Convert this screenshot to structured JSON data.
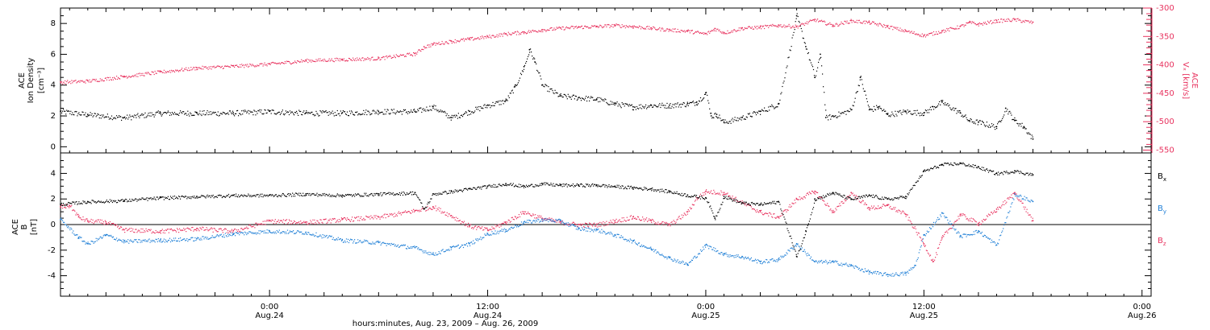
{
  "colors": {
    "black": "#000000",
    "pink": "#e8335f",
    "blue": "#1f7fd6"
  },
  "chart_data": [
    {
      "type": "scatter",
      "panel": "top",
      "left_axis": {
        "label_line1": "ACE",
        "label_line2": "Ion Density",
        "unit": "[cm⁻³]",
        "ylim": [
          -0.4,
          9
        ],
        "ticks": [
          0,
          2,
          4,
          6,
          8
        ]
      },
      "right_axis": {
        "label_line1": "ACE",
        "label_line2": "Vₓ [km/s]",
        "ylim": [
          -555,
          -300
        ],
        "ticks": [
          -300,
          -350,
          -400,
          -450,
          -500,
          -550
        ],
        "color": "#e8335f"
      },
      "series": [
        {
          "name": "Ion Density",
          "axis": "left",
          "color": "#000000",
          "x_hours": [
            -11.5,
            -10,
            -8,
            -6,
            -4,
            -2,
            0,
            2,
            4,
            6,
            8,
            9,
            10,
            11,
            12,
            13,
            13.5,
            14,
            14.3,
            14.6,
            15,
            16,
            17,
            18,
            19,
            20,
            21,
            22,
            23,
            23.5,
            24,
            24.3,
            24.6,
            25,
            26,
            27,
            28,
            29,
            29.5,
            30,
            30.3,
            30.6,
            31,
            32,
            32.5,
            33,
            33.5,
            34,
            35,
            36,
            36.5,
            37,
            38,
            38.5,
            39,
            40,
            40.5,
            41,
            41.5,
            42
          ],
          "y": [
            2.3,
            2.1,
            1.9,
            2.2,
            2.2,
            2.2,
            2.3,
            2.2,
            2.2,
            2.3,
            2.3,
            2.6,
            1.9,
            2.3,
            2.7,
            3.0,
            3.9,
            5.2,
            6.3,
            5.5,
            4.0,
            3.3,
            3.2,
            3.1,
            2.8,
            2.6,
            2.7,
            2.7,
            2.8,
            2.9,
            3.5,
            2.0,
            2.1,
            1.6,
            1.9,
            2.3,
            2.8,
            8.5,
            6.5,
            4.5,
            6.0,
            1.9,
            2.0,
            2.4,
            4.5,
            2.4,
            2.6,
            2.1,
            2.3,
            2.2,
            2.6,
            2.9,
            2.2,
            1.7,
            1.6,
            1.3,
            2.5,
            1.7,
            1.3,
            0.5
          ]
        },
        {
          "name": "Vx",
          "axis": "right",
          "color": "#e8335f",
          "x_hours": [
            -11.5,
            -10,
            -8,
            -6,
            -4,
            -2,
            0,
            2,
            4,
            6,
            8,
            8.5,
            9,
            10,
            11,
            12,
            13,
            14,
            15,
            16,
            17,
            18,
            19,
            20,
            21,
            22,
            23,
            24,
            24.5,
            25,
            26,
            27,
            28,
            29,
            30,
            31,
            32,
            33,
            34,
            35,
            36,
            37,
            38,
            38.5,
            39,
            40,
            41,
            42
          ],
          "y": [
            -430,
            -428,
            -420,
            -412,
            -405,
            -402,
            -398,
            -392,
            -390,
            -388,
            -380,
            -368,
            -363,
            -358,
            -354,
            -350,
            -345,
            -342,
            -338,
            -335,
            -333,
            -332,
            -330,
            -332,
            -335,
            -338,
            -340,
            -345,
            -336,
            -343,
            -335,
            -333,
            -330,
            -332,
            -320,
            -330,
            -322,
            -325,
            -332,
            -340,
            -348,
            -340,
            -332,
            -325,
            -328,
            -322,
            -320,
            -325
          ]
        }
      ]
    },
    {
      "type": "scatter",
      "panel": "bottom",
      "left_axis": {
        "label_line1": "ACE",
        "label_line2": "B",
        "unit": "[nT]",
        "ylim": [
          -5.6,
          5.6
        ],
        "ticks": [
          -4,
          -2,
          0,
          2,
          4
        ]
      },
      "x_axis": {
        "xlim_hours": [
          -11.5,
          48.5
        ],
        "ticks_hours": [
          0,
          12,
          24,
          36,
          48
        ],
        "tick_labels": [
          [
            "0:00",
            "Aug.24"
          ],
          [
            "12:00",
            "Aug.24"
          ],
          [
            "0:00",
            "Aug.25"
          ],
          [
            "12:00",
            "Aug.25"
          ],
          [
            "0:00",
            "Aug.26"
          ]
        ],
        "title": "hours:minutes, Aug. 23, 2009 – Aug. 26, 2009"
      },
      "series": [
        {
          "name": "Bx",
          "label_main": "B",
          "label_sub": "x",
          "color": "#000000",
          "x_hours": [
            -11.5,
            -10,
            -8,
            -6,
            -4,
            -2,
            0,
            2,
            4,
            6,
            8,
            8.5,
            9,
            10,
            11,
            12,
            13,
            14,
            15,
            16,
            17,
            18,
            19,
            20,
            21,
            22,
            23,
            24,
            24.5,
            25,
            26,
            27,
            28,
            29,
            29.5,
            30,
            31,
            32,
            33,
            34,
            35,
            36,
            37,
            38,
            39,
            40,
            41,
            42
          ],
          "y": [
            1.6,
            1.8,
            1.9,
            2.1,
            2.2,
            2.3,
            2.3,
            2.4,
            2.3,
            2.4,
            2.5,
            1.2,
            2.4,
            2.6,
            2.8,
            3.0,
            3.2,
            3.0,
            3.2,
            3.1,
            3.1,
            3.1,
            3.0,
            2.9,
            2.8,
            2.6,
            2.3,
            2.1,
            0.5,
            2.2,
            1.7,
            1.6,
            1.8,
            -2.5,
            -0.5,
            2.0,
            2.5,
            2.0,
            2.3,
            2.0,
            2.2,
            4.2,
            4.7,
            4.8,
            4.5,
            4.0,
            4.2,
            3.9
          ]
        },
        {
          "name": "By",
          "label_main": "B",
          "label_sub": "y",
          "color": "#1f7fd6",
          "x_hours": [
            -11.5,
            -10.5,
            -10,
            -9,
            -8,
            -6,
            -4,
            -2,
            0,
            2,
            4,
            6,
            8,
            9,
            10,
            11,
            12,
            13,
            14,
            15,
            16,
            17,
            18,
            19,
            20,
            21,
            22,
            23,
            24,
            25,
            26,
            27,
            28,
            29,
            30,
            31,
            32,
            33,
            34,
            35,
            35.5,
            36,
            37,
            38,
            39,
            40,
            41,
            42
          ],
          "y": [
            0.4,
            -1.0,
            -1.5,
            -0.8,
            -1.3,
            -1.2,
            -1.1,
            -0.7,
            -0.5,
            -0.6,
            -1.2,
            -1.4,
            -1.8,
            -2.3,
            -1.8,
            -1.5,
            -0.7,
            -0.4,
            0.2,
            0.4,
            0.3,
            -0.3,
            -0.4,
            -0.8,
            -1.3,
            -1.9,
            -2.6,
            -3.1,
            -1.6,
            -2.3,
            -2.5,
            -2.9,
            -2.7,
            -1.5,
            -2.9,
            -2.9,
            -3.2,
            -3.7,
            -3.9,
            -3.8,
            -3.2,
            -0.8,
            0.9,
            -0.9,
            -0.5,
            -1.6,
            2.4,
            1.8
          ]
        },
        {
          "name": "Bz",
          "label_main": "B",
          "label_sub": "z",
          "color": "#e8335f",
          "x_hours": [
            -11.5,
            -11,
            -10.5,
            -10,
            -9,
            -8,
            -6,
            -4,
            -2,
            0,
            2,
            4,
            6,
            8,
            9,
            10,
            11,
            12,
            13,
            14,
            15,
            16,
            17,
            18,
            19,
            20,
            21,
            22,
            23,
            23.5,
            24,
            25,
            26,
            27,
            28,
            29,
            30,
            31,
            32,
            33,
            34,
            35,
            36,
            36.5,
            37,
            38,
            39,
            40,
            41,
            42
          ],
          "y": [
            1.4,
            1.5,
            0.6,
            0.3,
            0.2,
            -0.4,
            -0.5,
            -0.3,
            -0.5,
            0.3,
            0.2,
            0.4,
            0.6,
            1.1,
            1.4,
            0.7,
            -0.1,
            -0.4,
            0.2,
            1.0,
            0.5,
            0.2,
            0.0,
            0.0,
            0.3,
            0.6,
            0.3,
            0.0,
            1.0,
            2.1,
            2.6,
            2.5,
            1.7,
            1.0,
            0.6,
            2.0,
            2.6,
            1.0,
            2.5,
            1.3,
            1.5,
            0.8,
            -1.5,
            -2.9,
            -1.0,
            0.8,
            0.1,
            1.2,
            2.5,
            0.3
          ]
        }
      ]
    }
  ]
}
